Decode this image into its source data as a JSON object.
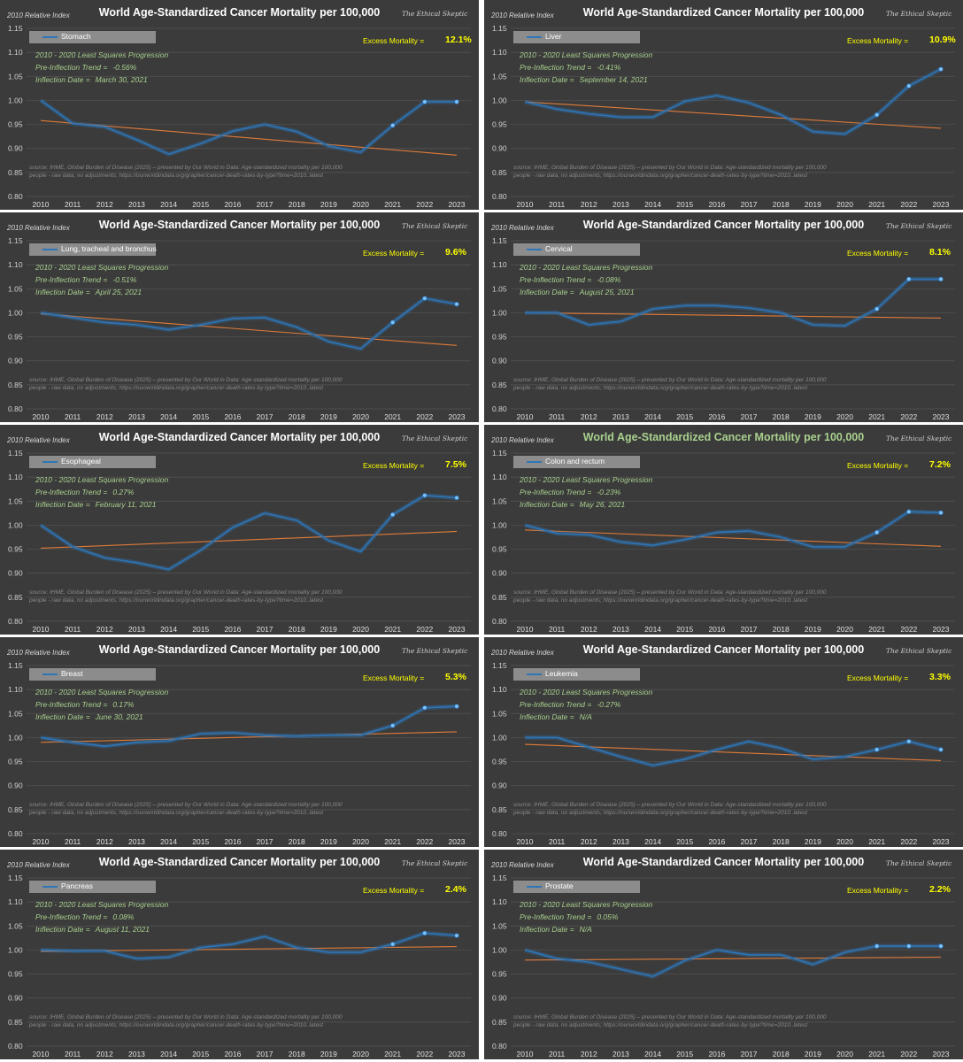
{
  "shared": {
    "title": "World Age-Standardized Cancer Mortality per 100,000",
    "y_axis_label": "2010 Relative Index",
    "watermark": "The Ethical Skeptic",
    "excess_label": "Excess Mortality =",
    "regression_label": "2010 - 2020 Least Squares Progression",
    "trend_label": "Pre-Inflection Trend =",
    "inflection_label": "Inflection Date =",
    "source_line1": "source: IHME, Global Burden of Disease (2025) – presented by Our World in Data: Age-standardized mortality per 100,000",
    "source_line2": "people - raw data, no adjustments; https://ourworldindata.org/grapher/cancer-death-rates-by-type?time=2010..latest"
  },
  "colors": {
    "panel_bg": "#3b3b3b",
    "series_line": "#2e75b6",
    "trend_line": "#e07b39",
    "excess_text": "#ffff00",
    "info_text": "#a9d18e",
    "title_text": "#ffffff",
    "title_highlight": "#a9d18e",
    "grid": "#555555"
  },
  "chart_data": [
    {
      "type": "line",
      "name": "Stomach",
      "excess": "12.1%",
      "trend": "-0.56%",
      "inflection": "March 30, 2021",
      "title_highlight": false,
      "x": [
        "2010",
        "2011",
        "2012",
        "2013",
        "2014",
        "2015",
        "2016",
        "2017",
        "2018",
        "2019",
        "2020",
        "2021",
        "2022",
        "2023"
      ],
      "values": [
        1.0,
        0.952,
        0.945,
        0.918,
        0.888,
        0.91,
        0.936,
        0.95,
        0.935,
        0.905,
        0.892,
        0.948,
        0.997,
        0.997
      ],
      "trendline": [
        0.958,
        0.886
      ],
      "ylim": [
        0.8,
        1.15
      ],
      "yticks": [
        "0.80",
        "0.85",
        "0.90",
        "0.95",
        "1.00",
        "1.05",
        "1.10",
        "1.15"
      ]
    },
    {
      "type": "line",
      "name": "Liver",
      "excess": "10.9%",
      "trend": "-0.41%",
      "inflection": "September 14, 2021",
      "title_highlight": false,
      "x": [
        "2010",
        "2011",
        "2012",
        "2013",
        "2014",
        "2015",
        "2016",
        "2017",
        "2018",
        "2019",
        "2020",
        "2021",
        "2022",
        "2023"
      ],
      "values": [
        0.997,
        0.982,
        0.972,
        0.965,
        0.965,
        0.998,
        1.01,
        0.995,
        0.97,
        0.935,
        0.93,
        0.97,
        1.03,
        1.065
      ],
      "trendline": [
        0.997,
        0.942
      ],
      "ylim": [
        0.8,
        1.15
      ],
      "yticks": [
        "0.80",
        "0.85",
        "0.90",
        "0.95",
        "1.00",
        "1.05",
        "1.10",
        "1.15"
      ]
    },
    {
      "type": "line",
      "name": "Lung, tracheal and bronchus",
      "excess": "9.6%",
      "trend": "-0.51%",
      "inflection": "April 25, 2021",
      "title_highlight": false,
      "x": [
        "2010",
        "2011",
        "2012",
        "2013",
        "2014",
        "2015",
        "2016",
        "2017",
        "2018",
        "2019",
        "2020",
        "2021",
        "2022",
        "2023"
      ],
      "values": [
        1.0,
        0.99,
        0.98,
        0.975,
        0.965,
        0.975,
        0.988,
        0.99,
        0.97,
        0.94,
        0.925,
        0.98,
        1.03,
        1.018
      ],
      "trendline": [
        0.998,
        0.932
      ],
      "ylim": [
        0.8,
        1.15
      ],
      "yticks": [
        "0.80",
        "0.85",
        "0.90",
        "0.95",
        "1.00",
        "1.05",
        "1.10",
        "1.15"
      ]
    },
    {
      "type": "line",
      "name": "Cervical",
      "excess": "8.1%",
      "trend": "-0.08%",
      "inflection": "August 25, 2021",
      "title_highlight": false,
      "x": [
        "2010",
        "2011",
        "2012",
        "2013",
        "2014",
        "2015",
        "2016",
        "2017",
        "2018",
        "2019",
        "2020",
        "2021",
        "2022",
        "2023"
      ],
      "values": [
        1.0,
        1.0,
        0.975,
        0.982,
        1.008,
        1.015,
        1.015,
        1.01,
        1.0,
        0.975,
        0.973,
        1.008,
        1.07,
        1.07
      ],
      "trendline": [
        1.0,
        0.989
      ],
      "ylim": [
        0.8,
        1.15
      ],
      "yticks": [
        "0.80",
        "0.85",
        "0.90",
        "0.95",
        "1.00",
        "1.05",
        "1.10",
        "1.15"
      ]
    },
    {
      "type": "line",
      "name": "Esophageal",
      "excess": "7.5%",
      "trend": "0.27%",
      "inflection": "February 11, 2021",
      "title_highlight": false,
      "x": [
        "2010",
        "2011",
        "2012",
        "2013",
        "2014",
        "2015",
        "2016",
        "2017",
        "2018",
        "2019",
        "2020",
        "2021",
        "2022",
        "2023"
      ],
      "values": [
        1.0,
        0.955,
        0.932,
        0.922,
        0.908,
        0.948,
        0.995,
        1.025,
        1.01,
        0.968,
        0.945,
        1.022,
        1.062,
        1.057
      ],
      "trendline": [
        0.952,
        0.987
      ],
      "ylim": [
        0.8,
        1.15
      ],
      "yticks": [
        "0.80",
        "0.85",
        "0.90",
        "0.95",
        "1.00",
        "1.05",
        "1.10",
        "1.15"
      ]
    },
    {
      "type": "line",
      "name": "Colon and rectum",
      "excess": "7.2%",
      "trend": "-0.23%",
      "inflection": "May 26, 2021",
      "title_highlight": true,
      "x": [
        "2010",
        "2011",
        "2012",
        "2013",
        "2014",
        "2015",
        "2016",
        "2017",
        "2018",
        "2019",
        "2020",
        "2021",
        "2022",
        "2023"
      ],
      "values": [
        1.0,
        0.983,
        0.98,
        0.965,
        0.958,
        0.97,
        0.985,
        0.988,
        0.975,
        0.955,
        0.955,
        0.985,
        1.028,
        1.026
      ],
      "trendline": [
        0.99,
        0.956
      ],
      "ylim": [
        0.8,
        1.15
      ],
      "yticks": [
        "0.80",
        "0.85",
        "0.90",
        "0.95",
        "1.00",
        "1.05",
        "1.10",
        "1.15"
      ]
    },
    {
      "type": "line",
      "name": "Breast",
      "excess": "5.3%",
      "trend": "0.17%",
      "inflection": "June 30, 2021",
      "title_highlight": false,
      "x": [
        "2010",
        "2011",
        "2012",
        "2013",
        "2014",
        "2015",
        "2016",
        "2017",
        "2018",
        "2019",
        "2020",
        "2021",
        "2022",
        "2023"
      ],
      "values": [
        1.0,
        0.99,
        0.982,
        0.99,
        0.993,
        1.008,
        1.01,
        1.005,
        1.003,
        1.005,
        1.005,
        1.025,
        1.062,
        1.065
      ],
      "trendline": [
        0.99,
        1.012
      ],
      "ylim": [
        0.8,
        1.15
      ],
      "yticks": [
        "0.80",
        "0.85",
        "0.90",
        "0.95",
        "1.00",
        "1.05",
        "1.10",
        "1.15"
      ]
    },
    {
      "type": "line",
      "name": "Leukemia",
      "excess": "3.3%",
      "trend": "-0.27%",
      "inflection": "N/A",
      "title_highlight": false,
      "x": [
        "2010",
        "2011",
        "2012",
        "2013",
        "2014",
        "2015",
        "2016",
        "2017",
        "2018",
        "2019",
        "2020",
        "2021",
        "2022",
        "2023"
      ],
      "values": [
        1.0,
        1.0,
        0.98,
        0.96,
        0.942,
        0.955,
        0.975,
        0.992,
        0.978,
        0.955,
        0.96,
        0.975,
        0.992,
        0.975
      ],
      "trendline": [
        0.986,
        0.952
      ],
      "ylim": [
        0.8,
        1.15
      ],
      "yticks": [
        "0.80",
        "0.85",
        "0.90",
        "0.95",
        "1.00",
        "1.05",
        "1.10",
        "1.15"
      ]
    },
    {
      "type": "line",
      "name": "Pancreas",
      "excess": "2.4%",
      "trend": "0.08%",
      "inflection": "August 11, 2021",
      "title_highlight": false,
      "x": [
        "2010",
        "2011",
        "2012",
        "2013",
        "2014",
        "2015",
        "2016",
        "2017",
        "2018",
        "2019",
        "2020",
        "2021",
        "2022",
        "2023"
      ],
      "values": [
        1.0,
        0.998,
        0.998,
        0.982,
        0.985,
        1.005,
        1.012,
        1.028,
        1.005,
        0.995,
        0.995,
        1.012,
        1.035,
        1.03
      ],
      "trendline": [
        0.997,
        1.007
      ],
      "ylim": [
        0.8,
        1.15
      ],
      "yticks": [
        "0.80",
        "0.85",
        "0.90",
        "0.95",
        "1.00",
        "1.05",
        "1.10",
        "1.15"
      ]
    },
    {
      "type": "line",
      "name": "Prostate",
      "excess": "2.2%",
      "trend": "0.05%",
      "inflection": "N/A",
      "title_highlight": false,
      "x": [
        "2010",
        "2011",
        "2012",
        "2013",
        "2014",
        "2015",
        "2016",
        "2017",
        "2018",
        "2019",
        "2020",
        "2021",
        "2022",
        "2023"
      ],
      "values": [
        1.0,
        0.982,
        0.975,
        0.96,
        0.945,
        0.978,
        1.0,
        0.99,
        0.99,
        0.97,
        0.995,
        1.008,
        1.008,
        1.008
      ],
      "trendline": [
        0.979,
        0.985
      ],
      "ylim": [
        0.8,
        1.15
      ],
      "yticks": [
        "0.80",
        "0.85",
        "0.90",
        "0.95",
        "1.00",
        "1.05",
        "1.10",
        "1.15"
      ]
    }
  ]
}
